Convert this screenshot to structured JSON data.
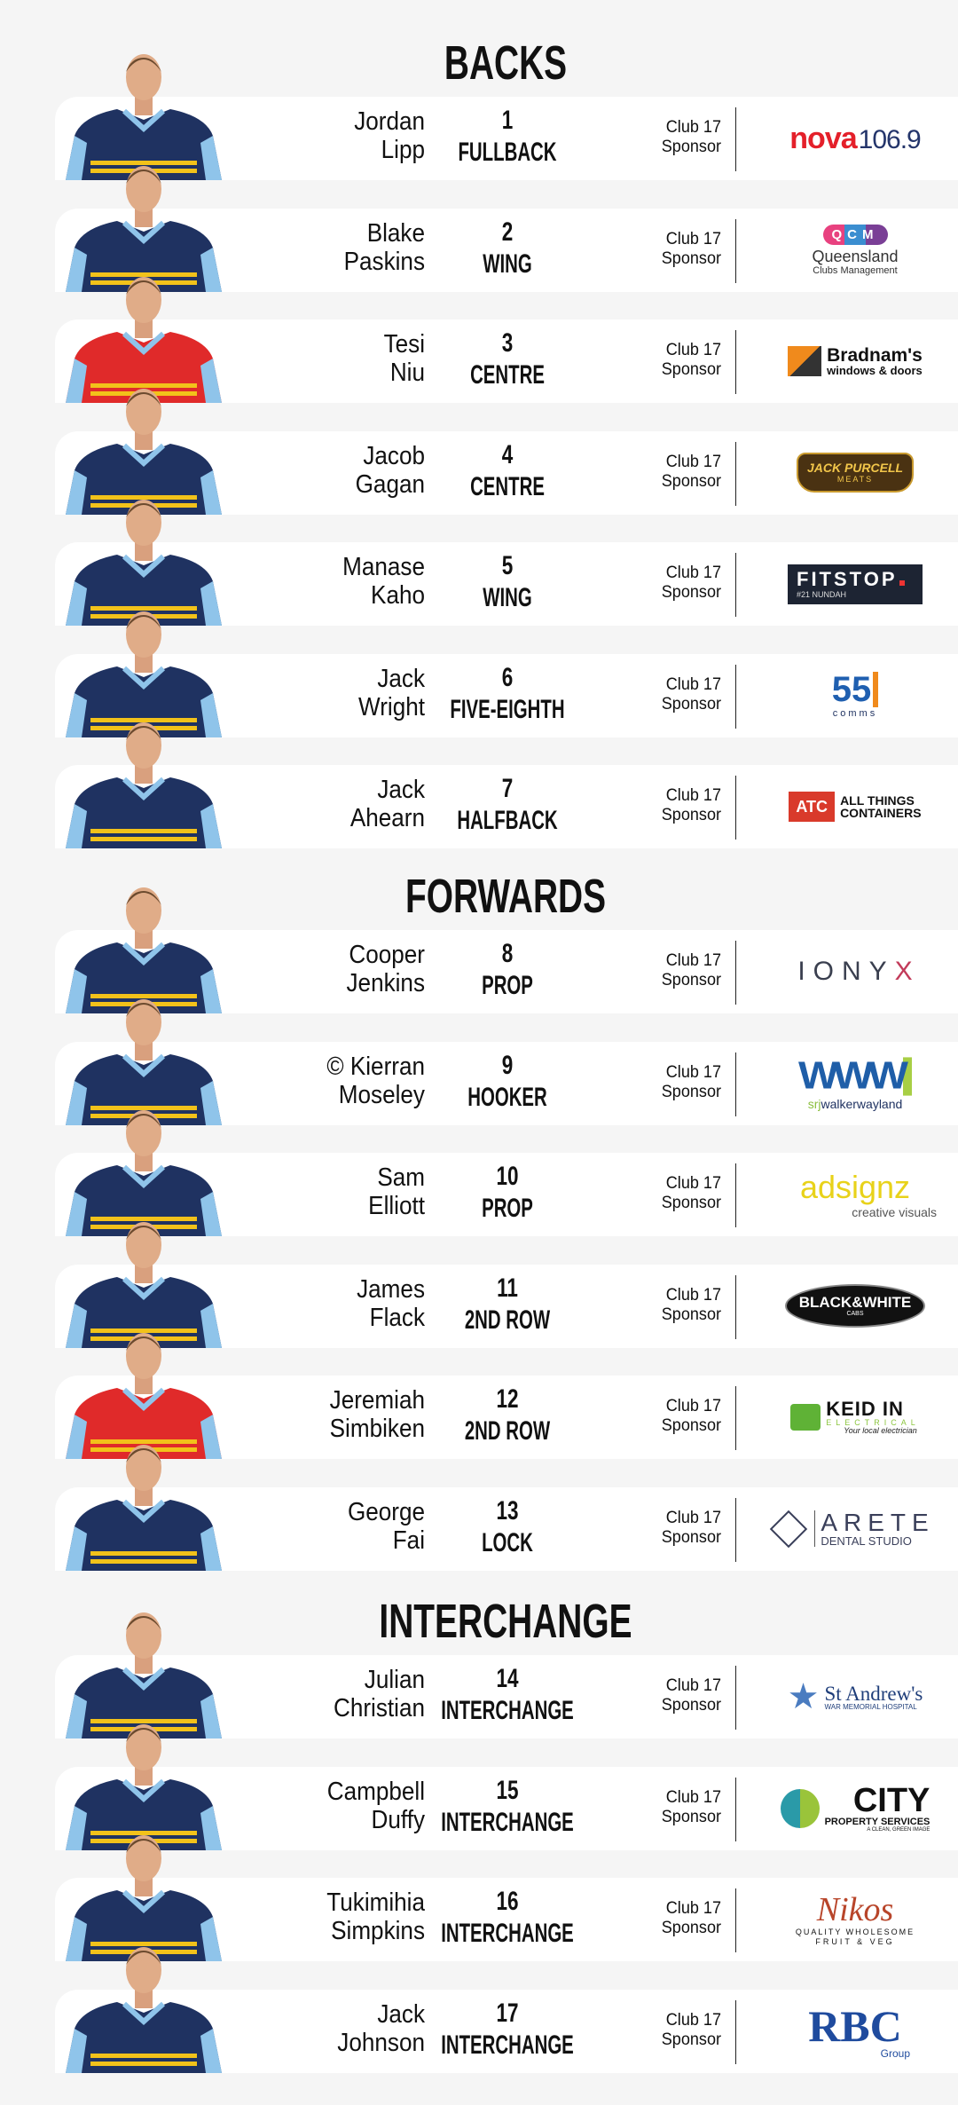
{
  "club_label": "Club 17",
  "sponsor_label": "Sponsor",
  "sections": [
    {
      "title": "BACKS",
      "players": [
        {
          "first": "Jordan",
          "last": "Lipp",
          "number": "1",
          "position": "FULLBACK",
          "jersey": "#1f3261",
          "sponsor": {
            "style": "nova",
            "lines": [
              "nova",
              "106.9"
            ]
          }
        },
        {
          "first": "Blake",
          "last": "Paskins",
          "number": "2",
          "position": "WING",
          "jersey": "#1f3261",
          "sponsor": {
            "style": "qcm",
            "lines": [
              "QCM",
              "Queensland",
              "Clubs Management"
            ]
          }
        },
        {
          "first": "Tesi",
          "last": "Niu",
          "number": "3",
          "position": "CENTRE",
          "jersey": "#e02a2a",
          "sponsor": {
            "style": "bradnams",
            "lines": [
              "Bradnam's",
              "windows & doors"
            ]
          }
        },
        {
          "first": "Jacob",
          "last": "Gagan",
          "number": "4",
          "position": "CENTRE",
          "jersey": "#1f3261",
          "sponsor": {
            "style": "jackpurcell",
            "lines": [
              "JACK PURCELL",
              "MEATS"
            ]
          }
        },
        {
          "first": "Manase",
          "last": "Kaho",
          "number": "5",
          "position": "WING",
          "jersey": "#1f3261",
          "sponsor": {
            "style": "fitstop",
            "lines": [
              "FITSTOP",
              "#21 NUNDAH"
            ]
          }
        },
        {
          "first": "Jack",
          "last": "Wright",
          "number": "6",
          "position": "FIVE-EIGHTH",
          "jersey": "#1f3261",
          "sponsor": {
            "style": "comms",
            "lines": [
              "55",
              "comms"
            ]
          }
        },
        {
          "first": "Jack",
          "last": "Ahearn",
          "number": "7",
          "position": "HALFBACK",
          "jersey": "#1f3261",
          "sponsor": {
            "style": "atc",
            "lines": [
              "ATC",
              "ALL THINGS",
              "CONTAINERS"
            ]
          }
        }
      ]
    },
    {
      "title": "FORWARDS",
      "players": [
        {
          "first": "Cooper",
          "last": "Jenkins",
          "number": "8",
          "position": "PROP",
          "jersey": "#1f3261",
          "sponsor": {
            "style": "ionyx",
            "lines": [
              "IONY",
              "X"
            ]
          }
        },
        {
          "first": "© Kierran",
          "last": "Moseley",
          "number": "9",
          "position": "HOOKER",
          "jersey": "#1f3261",
          "sponsor": {
            "style": "srj",
            "lines": [
              "WWW",
              "srj",
              "walkerwayland"
            ]
          }
        },
        {
          "first": "Sam",
          "last": "Elliott",
          "number": "10",
          "position": "PROP",
          "jersey": "#1f3261",
          "sponsor": {
            "style": "adsignz",
            "lines": [
              "adsignz",
              "creative visuals"
            ]
          }
        },
        {
          "first": "James",
          "last": "Flack",
          "number": "11",
          "position": "2ND ROW",
          "jersey": "#1f3261",
          "sponsor": {
            "style": "bwcabs",
            "lines": [
              "BLACK&WHITE",
              "CABS"
            ]
          }
        },
        {
          "first": "Jeremiah",
          "last": "Simbiken",
          "number": "12",
          "position": "2ND ROW",
          "jersey": "#e02a2a",
          "sponsor": {
            "style": "keidin",
            "lines": [
              "KEID IN",
              "ELECTRICAL",
              "Your local electrician"
            ]
          }
        },
        {
          "first": "George",
          "last": "Fai",
          "number": "13",
          "position": "LOCK",
          "jersey": "#1f3261",
          "sponsor": {
            "style": "arete",
            "lines": [
              "ARETE",
              "DENTAL STUDIO"
            ]
          }
        }
      ]
    },
    {
      "title": "INTERCHANGE",
      "players": [
        {
          "first": "Julian",
          "last": "Christian",
          "number": "14",
          "position": "INTERCHANGE",
          "jersey": "#1f3261",
          "sponsor": {
            "style": "standrews",
            "lines": [
              "St Andrew's",
              "WAR MEMORIAL HOSPITAL"
            ]
          }
        },
        {
          "first": "Campbell",
          "last": "Duffy",
          "number": "15",
          "position": "INTERCHANGE",
          "jersey": "#1f3261",
          "sponsor": {
            "style": "city",
            "lines": [
              "CITY",
              "PROPERTY SERVICES",
              "A CLEAN, GREEN IMAGE"
            ]
          }
        },
        {
          "first": "Tukimihia",
          "last": "Simpkins",
          "number": "16",
          "position": "INTERCHANGE",
          "jersey": "#1f3261",
          "sponsor": {
            "style": "nikos",
            "lines": [
              "Nikos",
              "QUALITY WHOLESOME",
              "FRUIT & VEG"
            ]
          }
        },
        {
          "first": "Jack",
          "last": "Johnson",
          "number": "17",
          "position": "INTERCHANGE",
          "jersey": "#1f3261",
          "sponsor": {
            "style": "rbc",
            "lines": [
              "RBC",
              "Group"
            ]
          }
        }
      ]
    }
  ]
}
